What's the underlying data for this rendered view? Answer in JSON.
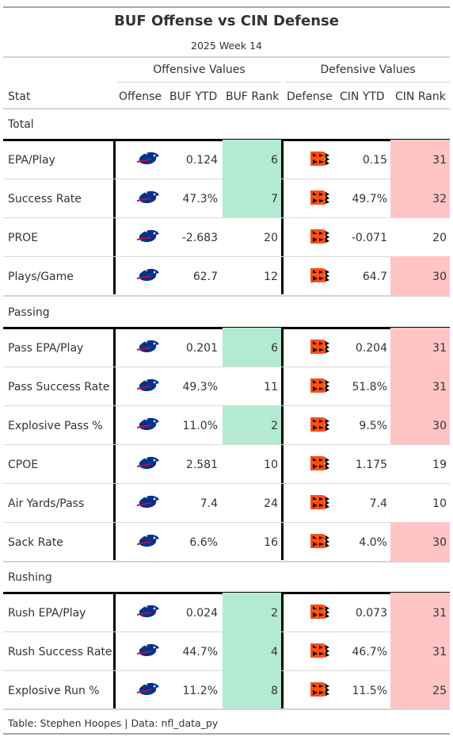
{
  "title": "BUF Offense vs CIN Defense",
  "subtitle": "2025 Week 14",
  "spanners": {
    "offense": "Offensive Values",
    "defense": "Defensive Values"
  },
  "columns": {
    "stat": "Stat",
    "offense": "Offense",
    "buf_ytd": "BUF YTD",
    "buf_rank": "BUF Rank",
    "defense": "Defense",
    "cin_ytd": "CIN YTD",
    "cin_rank": "CIN Rank"
  },
  "colors": {
    "good": "#b3ead1",
    "bad": "#ffc4c4",
    "buf_blue": "#00338D",
    "buf_red": "#C60C30",
    "cin_orange": "#FB4F14",
    "cin_black": "#000000"
  },
  "icons": {
    "offense": "bills-logo-icon",
    "defense": "bengals-logo-icon"
  },
  "sections": [
    {
      "name": "Total",
      "rows": [
        {
          "stat": "EPA/Play",
          "buf_ytd": "0.124",
          "buf_rank": "6",
          "buf_hl": "good",
          "cin_ytd": "0.15",
          "cin_rank": "31",
          "cin_hl": "bad"
        },
        {
          "stat": "Success Rate",
          "buf_ytd": "47.3%",
          "buf_rank": "7",
          "buf_hl": "good",
          "cin_ytd": "49.7%",
          "cin_rank": "32",
          "cin_hl": "bad"
        },
        {
          "stat": "PROE",
          "buf_ytd": "-2.683",
          "buf_rank": "20",
          "buf_hl": "",
          "cin_ytd": "-0.071",
          "cin_rank": "20",
          "cin_hl": ""
        },
        {
          "stat": "Plays/Game",
          "buf_ytd": "62.7",
          "buf_rank": "12",
          "buf_hl": "",
          "cin_ytd": "64.7",
          "cin_rank": "30",
          "cin_hl": "bad"
        }
      ]
    },
    {
      "name": "Passing",
      "rows": [
        {
          "stat": "Pass EPA/Play",
          "buf_ytd": "0.201",
          "buf_rank": "6",
          "buf_hl": "good",
          "cin_ytd": "0.204",
          "cin_rank": "31",
          "cin_hl": "bad"
        },
        {
          "stat": "Pass Success Rate",
          "buf_ytd": "49.3%",
          "buf_rank": "11",
          "buf_hl": "",
          "cin_ytd": "51.8%",
          "cin_rank": "31",
          "cin_hl": "bad"
        },
        {
          "stat": "Explosive Pass %",
          "buf_ytd": "11.0%",
          "buf_rank": "2",
          "buf_hl": "good",
          "cin_ytd": "9.5%",
          "cin_rank": "30",
          "cin_hl": "bad"
        },
        {
          "stat": "CPOE",
          "buf_ytd": "2.581",
          "buf_rank": "10",
          "buf_hl": "",
          "cin_ytd": "1.175",
          "cin_rank": "19",
          "cin_hl": ""
        },
        {
          "stat": "Air Yards/Pass",
          "buf_ytd": "7.4",
          "buf_rank": "24",
          "buf_hl": "",
          "cin_ytd": "7.4",
          "cin_rank": "10",
          "cin_hl": ""
        },
        {
          "stat": "Sack Rate",
          "buf_ytd": "6.6%",
          "buf_rank": "16",
          "buf_hl": "",
          "cin_ytd": "4.0%",
          "cin_rank": "30",
          "cin_hl": "bad"
        }
      ]
    },
    {
      "name": "Rushing",
      "rows": [
        {
          "stat": "Rush EPA/Play",
          "buf_ytd": "0.024",
          "buf_rank": "2",
          "buf_hl": "good",
          "cin_ytd": "0.073",
          "cin_rank": "31",
          "cin_hl": "bad"
        },
        {
          "stat": "Rush Success Rate",
          "buf_ytd": "44.7%",
          "buf_rank": "4",
          "buf_hl": "good",
          "cin_ytd": "46.7%",
          "cin_rank": "31",
          "cin_hl": "bad"
        },
        {
          "stat": "Explosive Run %",
          "buf_ytd": "11.2%",
          "buf_rank": "8",
          "buf_hl": "good",
          "cin_ytd": "11.5%",
          "cin_rank": "25",
          "cin_hl": "bad"
        }
      ]
    }
  ],
  "footer": "Table: Stephen Hoopes | Data: nfl_data_py"
}
